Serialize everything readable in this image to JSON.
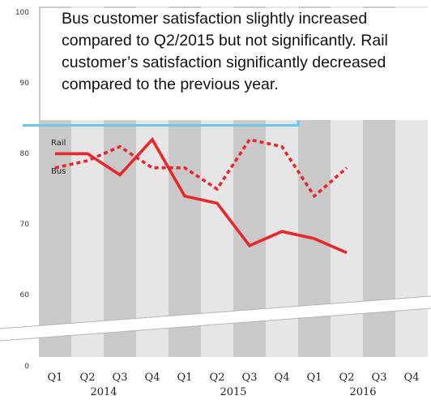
{
  "chart_data": {
    "type": "line",
    "categories": [
      "Q1",
      "Q2",
      "Q3",
      "Q4",
      "Q1",
      "Q2",
      "Q3",
      "Q4",
      "Q1",
      "Q2",
      "Q3",
      "Q4"
    ],
    "years": [
      "2014",
      "2015",
      "2016"
    ],
    "yticks": [
      "0",
      "60",
      "70",
      "80",
      "90",
      "100"
    ],
    "ylim": [
      55,
      100
    ],
    "axis_break": true,
    "series": [
      {
        "name": "Rail",
        "style": "solid",
        "color": "#e8262b",
        "values": [
          80,
          80,
          77,
          82,
          74,
          73,
          67,
          69,
          68,
          66,
          null,
          null
        ]
      },
      {
        "name": "Bus",
        "style": "dotted",
        "color": "#e8262b",
        "values": [
          78,
          79,
          81,
          78,
          78,
          75,
          82,
          81,
          74,
          78,
          null,
          null
        ]
      },
      {
        "name": "",
        "style": "solid",
        "color": "#6cc6e6",
        "values": [
          84,
          84,
          84,
          84,
          84,
          84,
          84,
          84,
          85,
          85,
          85,
          85
        ]
      }
    ],
    "annotation": "Bus customer satisfaction slightly increased compared to Q2/2015 but not significantly. Rail customer’s satisfaction significantly decreased compared to the previous year.",
    "background_bands": "alternating grey columns per quarter",
    "legend": "inline labels at left of lines"
  }
}
